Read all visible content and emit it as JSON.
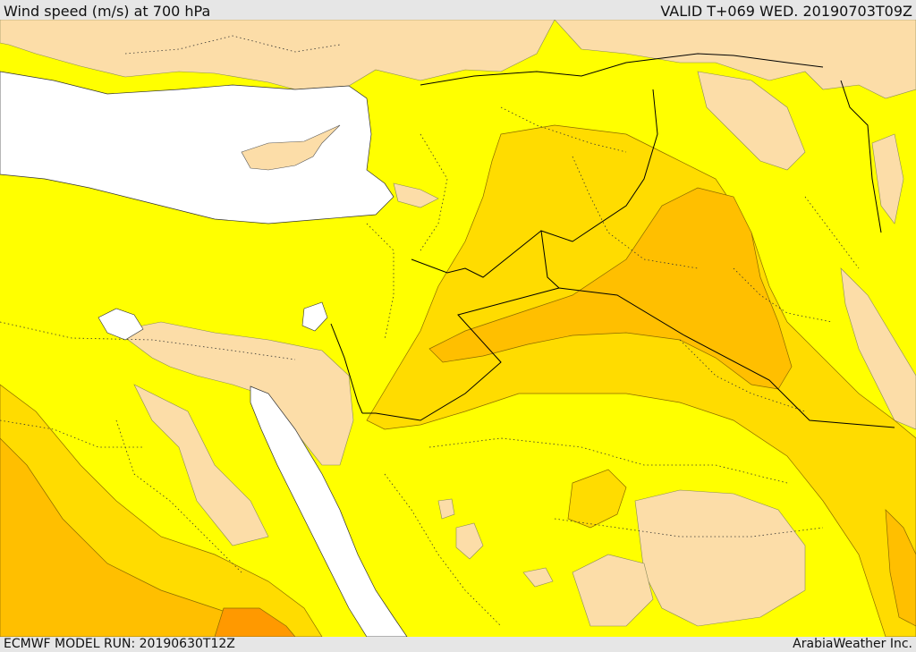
{
  "header": {
    "title": "Wind speed (m/s) at 700 hPa",
    "valid": "VALID T+069 WED. 20190703T09Z"
  },
  "footer": {
    "model_run": "ECMWF MODEL RUN: 20190630T12Z",
    "credit": "ArabiaWeather Inc."
  },
  "colors": {
    "band_low": "#fcdda8",
    "band_mid": "#ffff00",
    "band_high": "#ffdc00",
    "band_higher": "#ffbf00",
    "band_peak": "#ff9900",
    "sea": "#ffffff",
    "border": "#000000"
  }
}
